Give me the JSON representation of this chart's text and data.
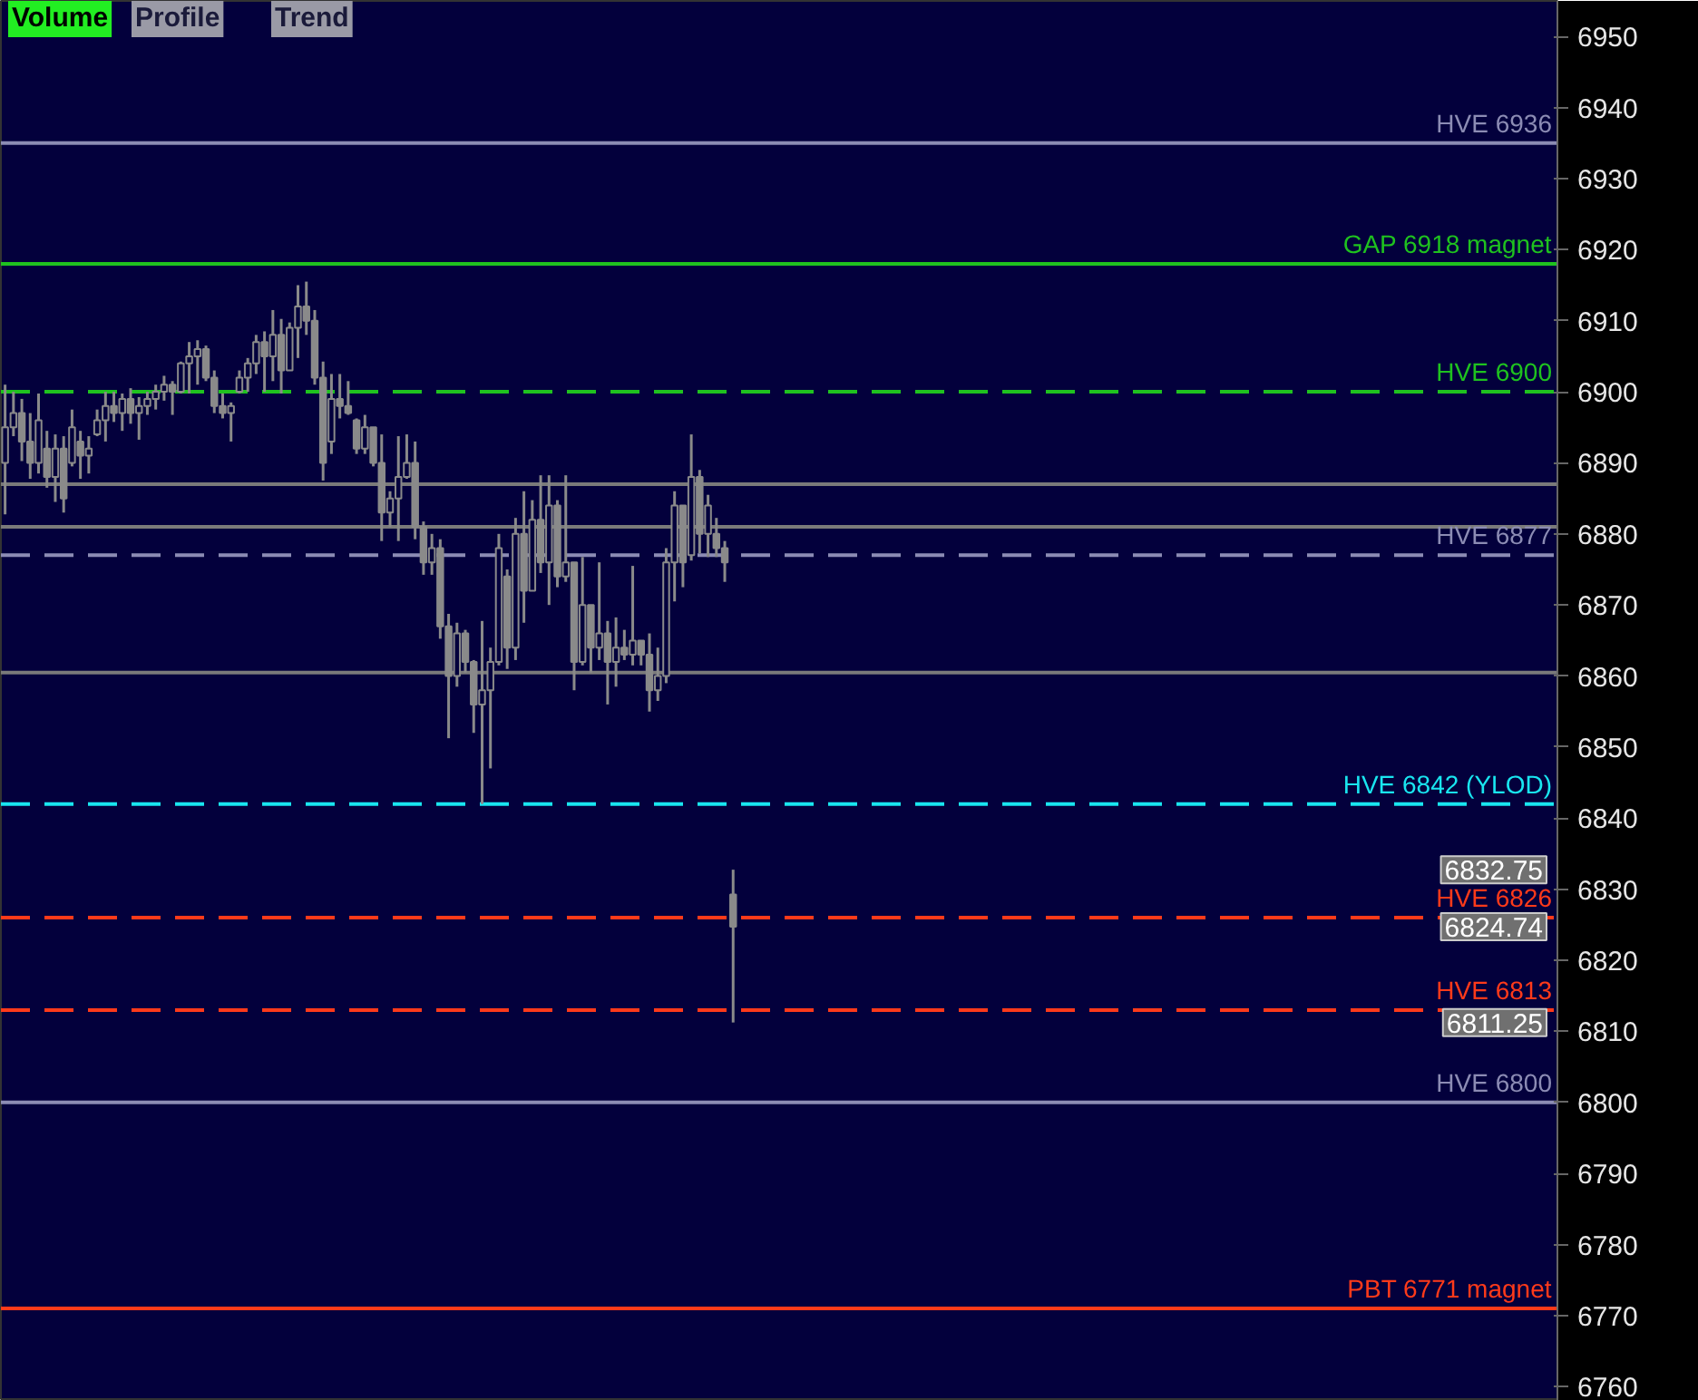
{
  "chart_data": {
    "type": "candlestick",
    "categories": [
      null,
      null,
      null,
      null,
      null,
      null,
      null,
      null,
      null,
      null,
      null,
      null,
      null,
      null,
      null,
      null,
      null,
      null,
      null,
      null,
      null,
      null,
      null,
      null,
      null,
      null,
      null,
      null,
      null,
      null,
      null,
      null,
      null,
      null,
      null,
      null,
      null,
      null,
      null,
      null,
      null,
      null,
      null,
      null,
      null,
      null,
      null,
      null,
      null,
      null,
      null,
      null,
      null,
      null,
      null,
      null,
      null,
      null,
      null,
      null,
      null,
      null,
      null,
      null,
      null,
      null,
      null,
      null,
      null,
      null,
      null,
      null,
      null,
      null,
      null,
      null,
      null,
      null,
      null,
      null,
      null,
      null,
      null,
      null,
      null,
      null,
      null,
      null,
      null,
      null,
      null,
      null,
      null,
      null,
      null,
      null,
      null,
      null,
      null,
      null,
      null,
      null,
      null,
      null,
      null,
      null,
      null,
      null,
      null,
      null,
      null,
      null,
      null,
      null,
      null,
      null,
      null,
      null,
      null,
      null,
      null,
      null,
      null,
      null,
      null,
      null,
      null,
      null,
      null,
      null,
      null,
      null,
      null,
      null,
      null,
      null,
      null,
      null,
      null,
      null,
      null,
      null,
      null,
      null,
      null,
      null,
      null,
      null,
      null,
      null,
      null,
      null,
      null,
      null,
      null,
      null,
      null,
      null,
      null,
      null,
      null,
      null,
      null,
      null,
      null,
      null,
      null,
      null,
      null,
      null,
      null,
      null,
      null,
      null,
      null,
      null,
      null,
      null,
      null,
      null,
      null,
      null,
      null,
      null,
      null,
      null
    ],
    "color": "#8a8a8a",
    "ohlc": [
      [
        6890,
        6901,
        6882.75,
        6895
      ],
      [
        6895,
        6900,
        6893.75,
        6897
      ],
      [
        6897,
        6899,
        6890.25,
        6893
      ],
      [
        6893,
        6897,
        6887.75,
        6890
      ],
      [
        6890,
        6899.75,
        6888.5,
        6896
      ],
      [
        6892,
        6894.5,
        6886.5,
        6888
      ],
      [
        6888,
        6894,
        6884.5,
        6892
      ],
      [
        6892,
        6893.75,
        6883,
        6885
      ],
      [
        6890,
        6897.5,
        6889.5,
        6895
      ],
      [
        6893,
        6894.5,
        6887.75,
        6891
      ],
      [
        6891,
        6893.75,
        6888.5,
        6892
      ],
      [
        6894,
        6897.5,
        6893.75,
        6896
      ],
      [
        6896,
        6900,
        6893,
        6898
      ],
      [
        6898,
        6900,
        6895.75,
        6897
      ],
      [
        6897,
        6899.75,
        6894.5,
        6899
      ],
      [
        6899,
        6900.5,
        6895.5,
        6897
      ],
      [
        6897,
        6899.25,
        6893.25,
        6898
      ],
      [
        6898,
        6900,
        6896.75,
        6899
      ],
      [
        6899,
        6901,
        6897.5,
        6900
      ],
      [
        6900,
        6902.25,
        6898.75,
        6901
      ],
      [
        6901,
        6901.5,
        6896.75,
        6900
      ],
      [
        6900,
        6904.25,
        6899.75,
        6904
      ],
      [
        6904,
        6907,
        6899.75,
        6905
      ],
      [
        6905,
        6907.25,
        6901,
        6906
      ],
      [
        6906,
        6906.5,
        6901.5,
        6902
      ],
      [
        6902,
        6903,
        6897,
        6898
      ],
      [
        6898,
        6899.75,
        6896.25,
        6897
      ],
      [
        6897,
        6898.5,
        6893,
        6898
      ],
      [
        6900,
        6903,
        6899.75,
        6902
      ],
      [
        6902,
        6904.75,
        6900,
        6904
      ],
      [
        6904,
        6908,
        6902.5,
        6907
      ],
      [
        6907,
        6908.5,
        6900,
        6905
      ],
      [
        6905,
        6911.5,
        6901.5,
        6908
      ],
      [
        6908,
        6910.25,
        6899.75,
        6903
      ],
      [
        6903,
        6909.75,
        6903,
        6909
      ],
      [
        6909,
        6915,
        6904.75,
        6912
      ],
      [
        6912,
        6915.5,
        6908,
        6910
      ],
      [
        6910,
        6911.5,
        6901,
        6902
      ],
      [
        6902,
        6904.25,
        6887.5,
        6890
      ],
      [
        6893,
        6902.5,
        6891.25,
        6899
      ],
      [
        6899,
        6902.5,
        6896.25,
        6898
      ],
      [
        6898,
        6901.5,
        6896.75,
        6897
      ],
      [
        6896,
        6896.25,
        6891.25,
        6892
      ],
      [
        6892,
        6896.75,
        6891.25,
        6895
      ],
      [
        6895,
        6895,
        6889.5,
        6890
      ],
      [
        6890,
        6894,
        6879,
        6883
      ],
      [
        6883,
        6886,
        6881,
        6885
      ],
      [
        6885,
        6893.75,
        6879,
        6888
      ],
      [
        6888,
        6894,
        6887.75,
        6890
      ],
      [
        6890,
        6893,
        6879.25,
        6881
      ],
      [
        6881,
        6881.75,
        6874.25,
        6876
      ],
      [
        6876,
        6880,
        6874.25,
        6878
      ],
      [
        6878,
        6879.25,
        6865.25,
        6867
      ],
      [
        6867,
        6868.75,
        6851.25,
        6860
      ],
      [
        6860,
        6867.5,
        6858.5,
        6866
      ],
      [
        6866,
        6866.5,
        6860.5,
        6862
      ],
      [
        6862,
        6862.25,
        6852,
        6856
      ],
      [
        6856,
        6867.75,
        6842,
        6858
      ],
      [
        6858,
        6864,
        6847,
        6862
      ],
      [
        6862,
        6880,
        6861.5,
        6878
      ],
      [
        6874,
        6875,
        6861,
        6864
      ],
      [
        6864,
        6882.25,
        6862.25,
        6880
      ],
      [
        6880,
        6886,
        6867.5,
        6872
      ],
      [
        6872,
        6884.75,
        6872,
        6882
      ],
      [
        6882,
        6888.25,
        6874.5,
        6876
      ],
      [
        6876,
        6888.25,
        6870,
        6884
      ],
      [
        6884,
        6884.75,
        6872.5,
        6874
      ],
      [
        6874,
        6888.25,
        6873.25,
        6876
      ],
      [
        6876,
        6876,
        6858,
        6862
      ],
      [
        6862,
        6876.75,
        6861.5,
        6870
      ],
      [
        6870,
        6870,
        6860.5,
        6864
      ],
      [
        6864,
        6876,
        6862.25,
        6866
      ],
      [
        6866,
        6867.75,
        6856,
        6862
      ],
      [
        6862,
        6868.25,
        6858.5,
        6864
      ],
      [
        6864,
        6866.5,
        6862.25,
        6863
      ],
      [
        6863,
        6875.5,
        6861.5,
        6865
      ],
      [
        6865,
        6865,
        6861.5,
        6863
      ],
      [
        6863,
        6866,
        6855,
        6858
      ],
      [
        6858,
        6864,
        6856.5,
        6860
      ],
      [
        6860,
        6878,
        6859,
        6876
      ],
      [
        6876,
        6886,
        6870.5,
        6884
      ],
      [
        6884,
        6884,
        6872.5,
        6876
      ],
      [
        6877,
        6894,
        6876.25,
        6888
      ],
      [
        6888,
        6889,
        6877.25,
        6880
      ],
      [
        6880,
        6885.5,
        6876.75,
        6884
      ],
      [
        6880,
        6882.25,
        6876.75,
        6878
      ],
      [
        6878,
        6879,
        6873.25,
        6876
      ],
      [
        6829.25,
        6832.75,
        6811.25,
        6824.74
      ],
      null,
      null,
      null,
      null,
      null,
      null,
      null,
      null,
      null,
      null,
      null,
      null,
      null,
      null,
      null,
      null,
      null,
      null,
      null,
      null,
      null,
      null,
      null,
      null,
      null,
      null,
      null,
      null,
      null,
      null,
      null,
      null,
      null,
      null,
      null,
      null,
      null,
      null,
      null,
      null,
      null,
      null,
      null,
      null,
      null,
      null,
      null,
      null,
      null,
      null,
      null,
      null,
      null,
      null,
      null,
      null,
      null,
      null,
      null,
      null,
      null,
      null,
      null,
      null,
      null,
      null,
      null,
      null,
      null,
      null,
      null,
      null,
      null,
      null,
      null,
      null,
      null,
      null,
      null,
      null,
      null,
      null,
      null,
      null,
      null,
      null,
      null,
      null,
      null,
      null,
      null,
      null,
      null,
      null,
      null,
      null,
      null,
      null
    ],
    "ylim": [
      6758,
      6955
    ],
    "yticks": [
      6760,
      6770,
      6780,
      6790,
      6800,
      6810,
      6820,
      6830,
      6840,
      6850,
      6860,
      6870,
      6880,
      6890,
      6900,
      6910,
      6920,
      6930,
      6940,
      6950
    ],
    "grid": false,
    "ref_lines": [
      {
        "axis": "y",
        "value": 6935,
        "label": "HVE 6936",
        "color": "#8c8cb4",
        "line_style": "solid"
      },
      {
        "axis": "y",
        "value": 6918,
        "label": "GAP 6918 magnet",
        "color": "#1fc21f",
        "line_style": "solid"
      },
      {
        "axis": "y",
        "value": 6900,
        "label": "HVE 6900",
        "color": "#1fc21f",
        "line_style": "dashed"
      },
      {
        "axis": "y",
        "value": 6887,
        "label": null,
        "color": "#7a7a7a",
        "line_style": "solid"
      },
      {
        "axis": "y",
        "value": 6881,
        "label": null,
        "color": "#7a7a7a",
        "line_style": "solid"
      },
      {
        "axis": "y",
        "value": 6877,
        "label": "HVE 6877",
        "color": "#8c8cb4",
        "line_style": "dashed"
      },
      {
        "axis": "y",
        "value": 6860.5,
        "label": null,
        "color": "#7a7a7a",
        "line_style": "solid"
      },
      {
        "axis": "y",
        "value": 6842,
        "label": "HVE 6842 (YLOD)",
        "color": "#19e6f0",
        "line_style": "dashed"
      },
      {
        "axis": "y",
        "value": 6826,
        "label": "HVE 6826",
        "color": "#ff3a1a",
        "line_style": "dashed"
      },
      {
        "axis": "y",
        "value": 6813,
        "label": "HVE 6813",
        "color": "#ff3a1a",
        "line_style": "dashed"
      },
      {
        "axis": "y",
        "value": 6800,
        "label": "HVE 6800",
        "color": "#8c8cb4",
        "line_style": "solid"
      },
      {
        "axis": "y",
        "value": 6771,
        "label": "PBT 6771 magnet",
        "color": "#ff3a1a",
        "line_style": "solid"
      }
    ],
    "annotations": [
      "Volume",
      "Profile",
      "Trend",
      "6832.75",
      "6824.74",
      "6811.25"
    ]
  }
}
